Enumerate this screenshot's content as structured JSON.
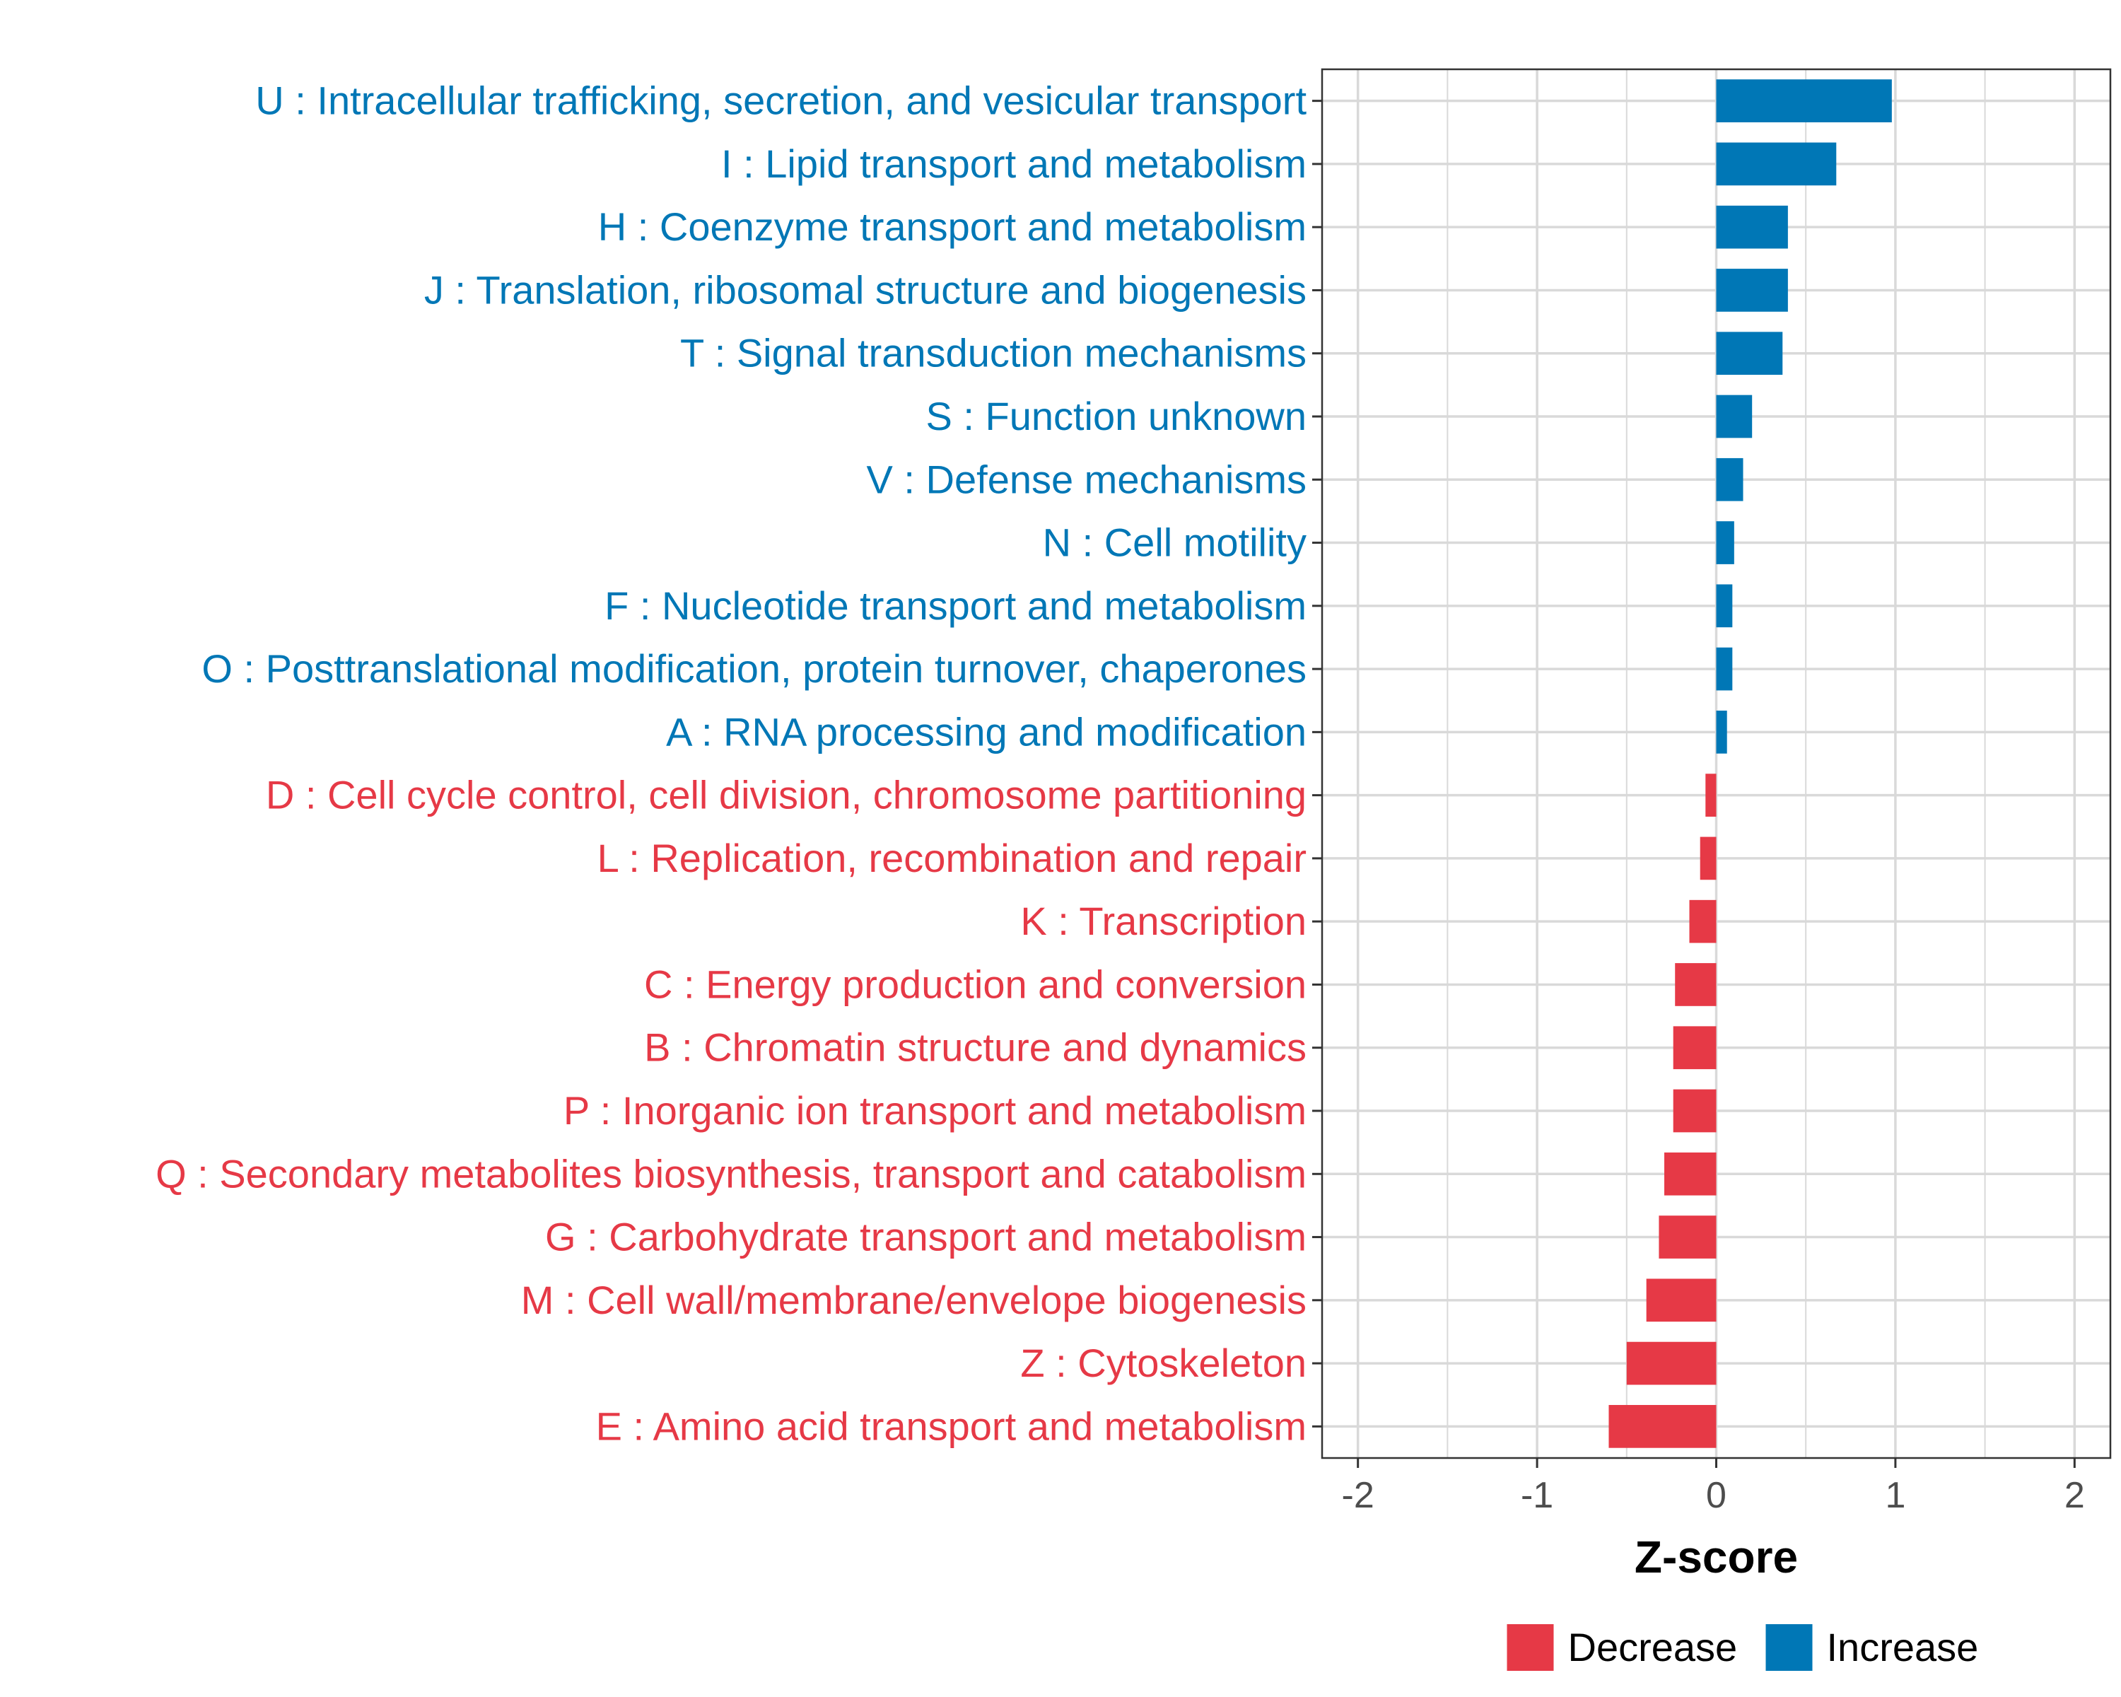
{
  "chart_data": {
    "type": "bar",
    "orientation": "horizontal",
    "title": "",
    "xlabel": "Z-score",
    "ylabel": "",
    "xlim": [
      -2.2,
      2.2
    ],
    "xticks": [
      -2,
      -1,
      0,
      1,
      2
    ],
    "xtick_labels": [
      "-2",
      "-1",
      "0",
      "1",
      "2"
    ],
    "grid": true,
    "legend_position": "bottom",
    "colors": {
      "Decrease": "#e63946",
      "Increase": "#0077b6"
    },
    "legend": [
      {
        "name": "Decrease",
        "color": "#e63946"
      },
      {
        "name": "Increase",
        "color": "#0077b6"
      }
    ],
    "categories": [
      "U : Intracellular trafficking, secretion, and vesicular transport",
      "I : Lipid transport and metabolism",
      "H : Coenzyme transport and metabolism",
      "J : Translation, ribosomal structure and biogenesis",
      "T : Signal transduction mechanisms",
      "S : Function unknown",
      "V : Defense mechanisms",
      "N : Cell motility",
      "F : Nucleotide transport and metabolism",
      "O : Posttranslational modification, protein turnover, chaperones",
      "A : RNA processing and modification",
      "D : Cell cycle control, cell division, chromosome partitioning",
      "L : Replication, recombination and repair",
      "K : Transcription",
      "C : Energy production and conversion",
      "B : Chromatin structure and dynamics",
      "P : Inorganic ion transport and metabolism",
      "Q : Secondary metabolites biosynthesis, transport and catabolism",
      "G : Carbohydrate transport and metabolism",
      "M : Cell wall/membrane/envelope biogenesis",
      "Z : Cytoskeleton",
      "E : Amino acid transport and metabolism"
    ],
    "values": [
      0.98,
      0.67,
      0.4,
      0.4,
      0.37,
      0.2,
      0.15,
      0.1,
      0.09,
      0.09,
      0.06,
      -0.06,
      -0.09,
      -0.15,
      -0.23,
      -0.24,
      -0.24,
      -0.29,
      -0.32,
      -0.39,
      -0.5,
      -0.6
    ],
    "groups": [
      "Increase",
      "Increase",
      "Increase",
      "Increase",
      "Increase",
      "Increase",
      "Increase",
      "Increase",
      "Increase",
      "Increase",
      "Increase",
      "Decrease",
      "Decrease",
      "Decrease",
      "Decrease",
      "Decrease",
      "Decrease",
      "Decrease",
      "Decrease",
      "Decrease",
      "Decrease",
      "Decrease"
    ]
  }
}
